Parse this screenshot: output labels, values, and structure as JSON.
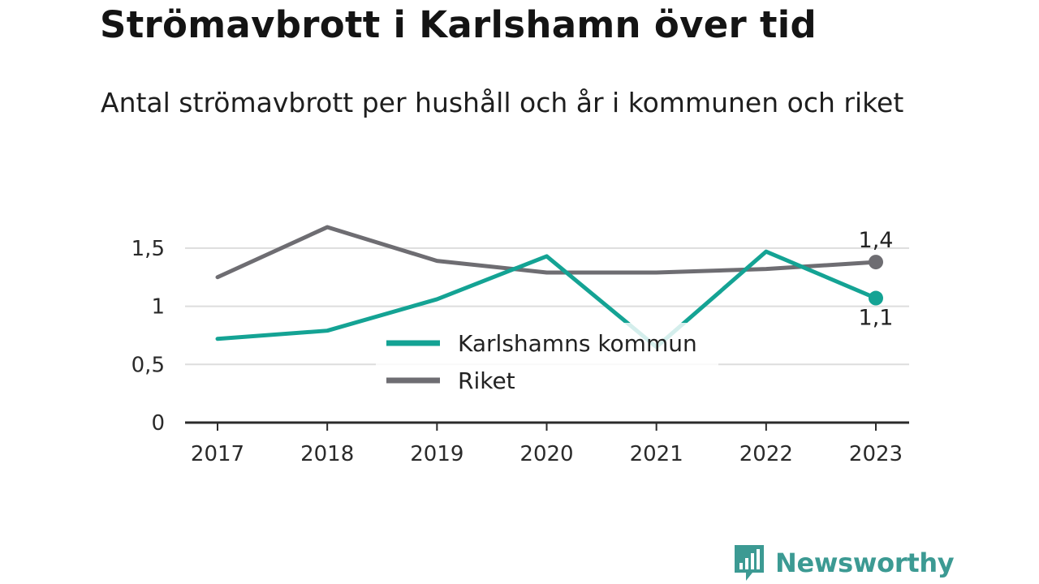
{
  "title": "Strömavbrott i Karlshamn över tid",
  "subtitle": "Antal strömavbrott per hushåll och år i kommunen och riket",
  "brand": {
    "name": "Newsworthy",
    "logo_icon": "bar-chart-speech-bubble-icon",
    "color": "#3c9a93"
  },
  "chart_data": {
    "type": "line",
    "x": [
      "2017",
      "2018",
      "2019",
      "2020",
      "2021",
      "2022",
      "2023"
    ],
    "y_ticks": [
      {
        "value": 0,
        "label": "0"
      },
      {
        "value": 0.5,
        "label": "0,5"
      },
      {
        "value": 1,
        "label": "1"
      },
      {
        "value": 1.5,
        "label": "1,5"
      }
    ],
    "ylim": [
      0,
      1.75
    ],
    "grid": true,
    "legend_position": "center-bottom",
    "series": [
      {
        "name": "Karlshamns kommun",
        "color": "#14a394",
        "values": [
          0.72,
          0.79,
          1.06,
          1.43,
          0.65,
          1.47,
          1.07
        ],
        "end_label": "1,1"
      },
      {
        "name": "Riket",
        "color": "#6e6d72",
        "values": [
          1.25,
          1.68,
          1.39,
          1.29,
          1.29,
          1.32,
          1.38
        ],
        "end_label": "1,4"
      }
    ]
  }
}
